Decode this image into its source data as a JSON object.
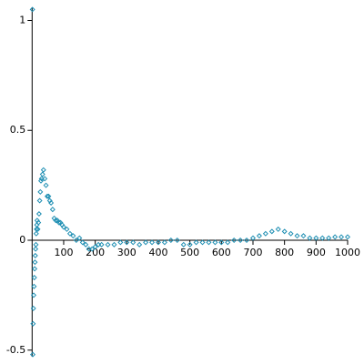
{
  "chart_data": {
    "type": "scatter",
    "color": "#1f8fb3",
    "xlim": [
      0,
      1000
    ],
    "ylim": [
      -0.53,
      1.06
    ],
    "xticks": [
      100,
      200,
      300,
      400,
      500,
      600,
      700,
      800,
      900,
      1000
    ],
    "yticks": [
      -0.5,
      0,
      0.5,
      1
    ],
    "x": [
      1,
      2,
      3,
      4,
      5,
      6,
      7,
      8,
      9,
      10,
      11,
      12,
      13,
      14,
      15,
      16,
      18,
      20,
      22,
      24,
      26,
      28,
      30,
      33,
      36,
      40,
      44,
      48,
      52,
      56,
      60,
      65,
      70,
      75,
      80,
      85,
      90,
      95,
      100,
      110,
      120,
      130,
      140,
      150,
      160,
      170,
      180,
      190,
      200,
      210,
      220,
      240,
      260,
      280,
      300,
      320,
      340,
      360,
      380,
      400,
      420,
      440,
      460,
      480,
      500,
      520,
      540,
      560,
      580,
      600,
      620,
      640,
      660,
      680,
      700,
      720,
      740,
      760,
      780,
      800,
      820,
      840,
      860,
      880,
      900,
      920,
      940,
      960,
      980,
      1000
    ],
    "values": [
      1.05,
      -0.52,
      -0.38,
      -0.31,
      -0.25,
      -0.21,
      -0.17,
      -0.13,
      -0.1,
      -0.07,
      -0.04,
      -0.02,
      0.03,
      0.05,
      0.07,
      0.09,
      0.05,
      0.08,
      0.12,
      0.18,
      0.22,
      0.27,
      0.28,
      0.3,
      0.32,
      0.28,
      0.25,
      0.2,
      0.2,
      0.18,
      0.17,
      0.14,
      0.1,
      0.09,
      0.09,
      0.08,
      0.08,
      0.07,
      0.06,
      0.05,
      0.03,
      0.02,
      0.0,
      0.01,
      -0.01,
      -0.02,
      -0.04,
      -0.04,
      -0.03,
      -0.02,
      -0.02,
      -0.02,
      -0.02,
      -0.01,
      -0.01,
      -0.01,
      -0.02,
      -0.01,
      -0.01,
      -0.01,
      -0.01,
      0.0,
      0.0,
      -0.02,
      -0.02,
      -0.01,
      -0.01,
      -0.01,
      -0.01,
      -0.01,
      -0.01,
      0.0,
      0.0,
      0.0,
      0.01,
      0.02,
      0.03,
      0.04,
      0.05,
      0.04,
      0.03,
      0.02,
      0.02,
      0.01,
      0.01,
      0.01,
      0.01,
      0.015,
      0.015,
      0.015
    ]
  }
}
